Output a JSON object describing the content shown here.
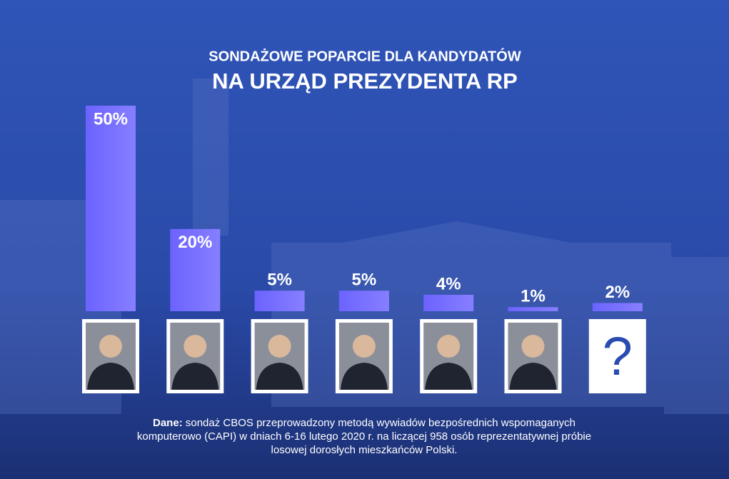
{
  "chart_data": {
    "type": "bar",
    "subtitle": "SONDAŻOWE POPARCIE DLA KANDYDATÓW",
    "title": "NA URZĄD PREZYDENTA RP",
    "categories": [
      null,
      null,
      null,
      null,
      null,
      null,
      "?"
    ],
    "values": [
      50,
      20,
      5,
      5,
      4,
      1,
      2
    ],
    "value_labels": [
      "50%",
      "20%",
      "5%",
      "5%",
      "4%",
      "1%",
      "2%"
    ],
    "color": "#6c63ff",
    "note_label": "Dane:",
    "note": "sondaż CBOS przeprowadzony metodą wywiadów bezpośrednich wspomaganych komputerowo (CAPI) w dniach 6-16 lutego 2020 r. na liczącej 958 osób reprezentatywnej próbie losowej dorosłych mieszkańców Polski."
  }
}
